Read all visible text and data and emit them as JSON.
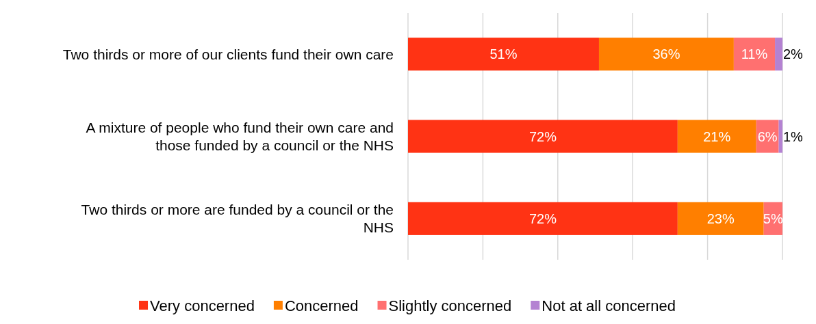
{
  "chart_data": {
    "type": "bar",
    "orientation": "horizontal",
    "stacked": true,
    "categories": [
      "Two thirds or more of our clients fund their own care",
      "A mixture of people who fund their own care and those funded by a council or the NHS",
      "Two thirds or more are funded by a council or the NHS"
    ],
    "series": [
      {
        "name": "Very concerned",
        "color": "#ff3314",
        "values": [
          51,
          72,
          72
        ],
        "value_labels": [
          "51%",
          "72%",
          "72%"
        ]
      },
      {
        "name": "Concerned",
        "color": "#ff7f00",
        "values": [
          36,
          21,
          23
        ],
        "value_labels": [
          "36%",
          "21%",
          "23%"
        ]
      },
      {
        "name": "Slightly concerned",
        "color": "#ff7070",
        "values": [
          11,
          6,
          5
        ],
        "value_labels": [
          "11%",
          "6%",
          "5%"
        ]
      },
      {
        "name": "Not at all concerned",
        "color": "#b482d2",
        "values": [
          2,
          1,
          null
        ],
        "value_labels": [
          "2%",
          "1%",
          null
        ]
      }
    ],
    "tick_labels": "y",
    "grid": "x",
    "legend": "bottom"
  }
}
